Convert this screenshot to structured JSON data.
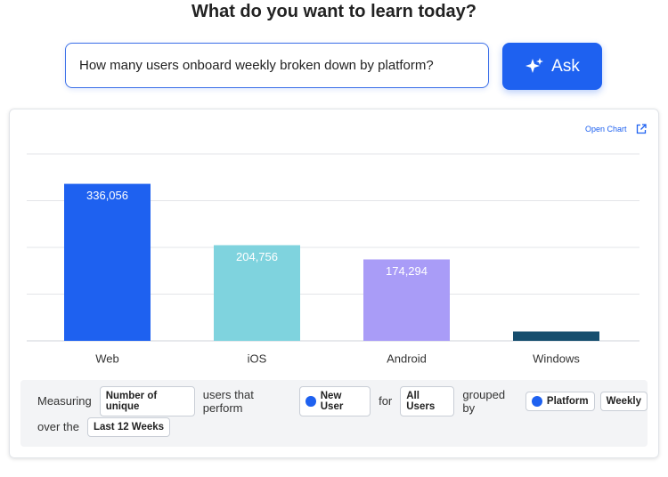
{
  "header": {
    "title": "What do you want to learn today?"
  },
  "search": {
    "query": "How many users onboard weekly broken down by platform?",
    "button": "Ask"
  },
  "card": {
    "open_chart": "Open Chart"
  },
  "chart_data": {
    "type": "bar",
    "categories": [
      "Web",
      "iOS",
      "Android",
      "Windows"
    ],
    "series": [
      {
        "name": null,
        "values": [
          336056,
          204756,
          174294,
          20000
        ],
        "value_labels": [
          "336,056",
          "204,756",
          "174,294",
          null
        ],
        "colors": [
          "#1e61f0",
          "#7fd3de",
          "#a99cf7",
          "#164e6e"
        ]
      }
    ],
    "ylim": [
      0,
      400000
    ],
    "yticks": [
      0,
      100000,
      200000,
      300000,
      400000
    ],
    "grid": true
  },
  "query": {
    "rows": [
      [
        {
          "text": "Measuring"
        },
        {
          "chip": "Number of unique"
        },
        {
          "text": "users that perform"
        },
        {
          "chip": "New User",
          "icon": true
        },
        {
          "text": "for"
        },
        {
          "chip": "All Users"
        },
        {
          "text": "grouped by"
        },
        {
          "chip": "Platform",
          "icon": true
        },
        {
          "chip": "Weekly"
        }
      ],
      [
        {
          "text": "over the"
        },
        {
          "chip": "Last 12 Weeks"
        }
      ]
    ]
  }
}
